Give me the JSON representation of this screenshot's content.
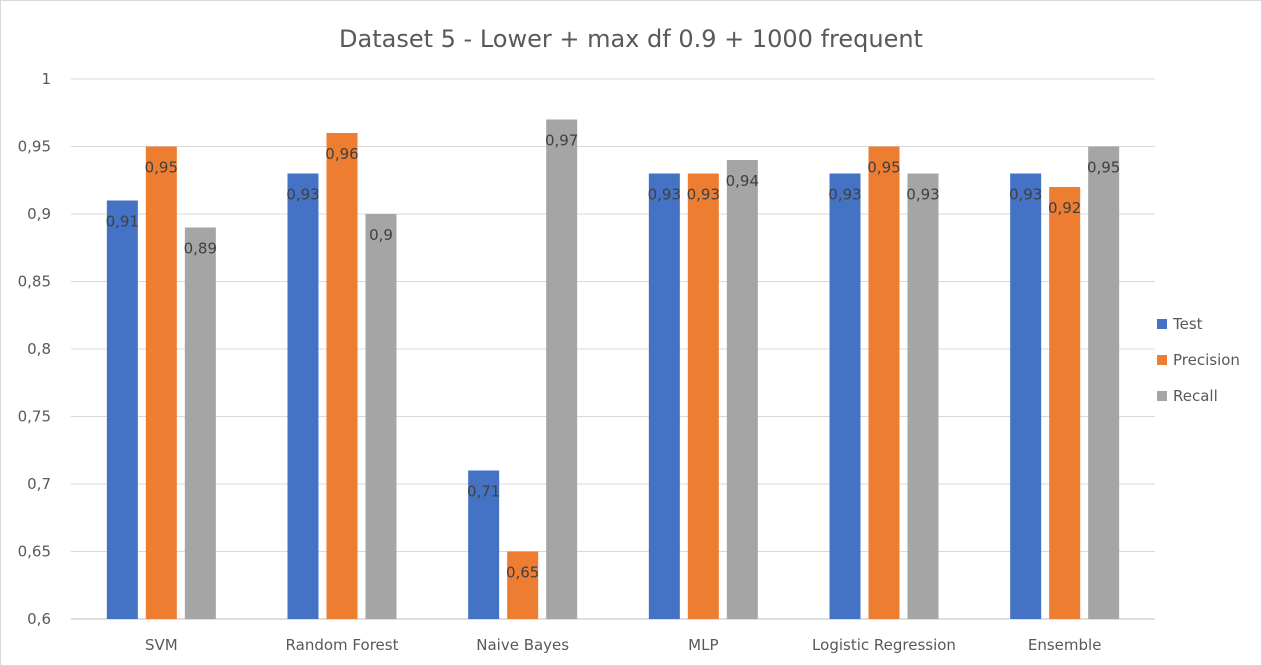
{
  "chart_data": {
    "type": "bar",
    "title": "Dataset 5 - Lower + max df 0.9 + 1000 frequent",
    "xlabel": "",
    "ylabel": "",
    "ylim": [
      0.6,
      1.0
    ],
    "yticks": [
      0.6,
      0.65,
      0.7,
      0.75,
      0.8,
      0.85,
      0.9,
      0.95,
      1.0
    ],
    "ytick_labels": [
      "0,6",
      "0,65",
      "0,7",
      "0,75",
      "0,8",
      "0,85",
      "0,9",
      "0,95",
      "1"
    ],
    "categories": [
      "SVM",
      "Random Forest",
      "Naive Bayes",
      "MLP",
      "Logistic Regression",
      "Ensemble"
    ],
    "series": [
      {
        "name": "Test",
        "color": "#4472c4",
        "values": [
          0.91,
          0.93,
          0.71,
          0.93,
          0.93,
          0.93
        ],
        "labels": [
          "0,91",
          "0,93",
          "0,71",
          "0,93",
          "0,93",
          "0,93"
        ]
      },
      {
        "name": "Precision",
        "color": "#ed7d31",
        "values": [
          0.95,
          0.96,
          0.65,
          0.93,
          0.95,
          0.92
        ],
        "labels": [
          "0,95",
          "0,96",
          "0,65",
          "0,93",
          "0,95",
          "0,92"
        ]
      },
      {
        "name": "Recall",
        "color": "#a5a5a5",
        "values": [
          0.89,
          0.9,
          0.97,
          0.94,
          0.93,
          0.95
        ],
        "labels": [
          "0,89",
          "0,9",
          "0,97",
          "0,94",
          "0,93",
          "0,95"
        ]
      }
    ],
    "grid": true,
    "legend_position": "right",
    "data_labels": true
  }
}
